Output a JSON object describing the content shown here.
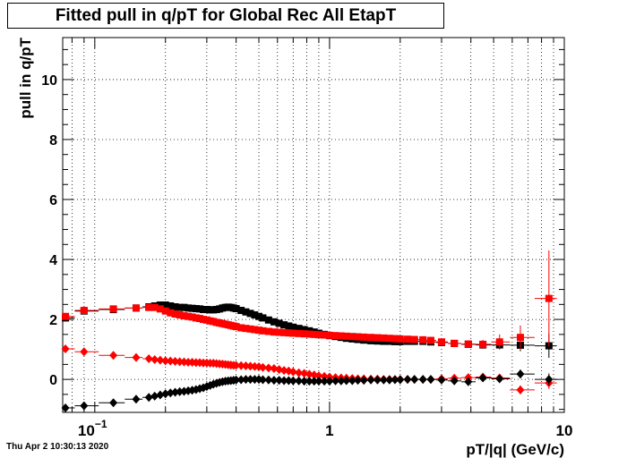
{
  "chart_data": {
    "type": "scatter",
    "title": "Fitted pull in q/pT for Global Rec All EtapT",
    "xlabel": "pT/|q| (GeV/c)",
    "ylabel": "pull in q/pT",
    "x_scale": "log",
    "xlim": [
      0.073,
      10
    ],
    "ylim": [
      -1.1,
      11.4
    ],
    "grid": true,
    "x_ticks": [
      {
        "value": 0.1,
        "base": "10",
        "exp": "−1"
      },
      {
        "value": 1,
        "base": "1",
        "exp": ""
      },
      {
        "value": 10,
        "base": "10",
        "exp": ""
      }
    ],
    "y_ticks": [
      0,
      2,
      4,
      6,
      8,
      10
    ],
    "series": [
      {
        "marker": "square",
        "color": "#000000",
        "x": [
          0.075,
          0.09,
          0.12,
          0.15,
          0.17,
          0.18,
          0.19,
          0.2,
          0.21,
          0.22,
          0.23,
          0.24,
          0.25,
          0.26,
          0.27,
          0.28,
          0.29,
          0.3,
          0.31,
          0.32,
          0.33,
          0.34,
          0.35,
          0.36,
          0.37,
          0.38,
          0.39,
          0.4,
          0.42,
          0.44,
          0.46,
          0.48,
          0.5,
          0.52,
          0.55,
          0.58,
          0.61,
          0.64,
          0.67,
          0.7,
          0.74,
          0.78,
          0.82,
          0.86,
          0.9,
          0.95,
          1.0,
          1.06,
          1.12,
          1.18,
          1.25,
          1.32,
          1.4,
          1.5,
          1.6,
          1.7,
          1.8,
          1.9,
          2.0,
          2.15,
          2.3,
          2.5,
          2.7,
          3.0,
          3.4,
          3.9,
          4.5,
          5.3,
          6.5,
          8.6
        ],
        "y": [
          2.05,
          2.28,
          2.33,
          2.38,
          2.42,
          2.45,
          2.48,
          2.48,
          2.45,
          2.42,
          2.4,
          2.4,
          2.38,
          2.37,
          2.36,
          2.35,
          2.33,
          2.33,
          2.32,
          2.32,
          2.33,
          2.35,
          2.38,
          2.4,
          2.41,
          2.4,
          2.38,
          2.36,
          2.3,
          2.25,
          2.2,
          2.15,
          2.1,
          2.05,
          1.98,
          1.92,
          1.87,
          1.82,
          1.78,
          1.74,
          1.7,
          1.66,
          1.62,
          1.58,
          1.54,
          1.5,
          1.46,
          1.43,
          1.4,
          1.37,
          1.35,
          1.33,
          1.31,
          1.29,
          1.28,
          1.27,
          1.27,
          1.26,
          1.26,
          1.27,
          1.27,
          1.27,
          1.25,
          1.23,
          1.2,
          1.17,
          1.15,
          1.15,
          1.14,
          1.12
        ],
        "err": [
          0.05,
          0.04,
          0.04,
          0.04,
          0.04,
          0.04,
          0.04,
          0.04,
          0.04,
          0.04,
          0.04,
          0.04,
          0.04,
          0.04,
          0.04,
          0.04,
          0.04,
          0.04,
          0.04,
          0.04,
          0.04,
          0.04,
          0.04,
          0.04,
          0.04,
          0.04,
          0.04,
          0.04,
          0.04,
          0.04,
          0.04,
          0.04,
          0.04,
          0.04,
          0.04,
          0.04,
          0.04,
          0.04,
          0.04,
          0.04,
          0.04,
          0.04,
          0.04,
          0.04,
          0.04,
          0.04,
          0.04,
          0.04,
          0.04,
          0.04,
          0.04,
          0.04,
          0.04,
          0.04,
          0.04,
          0.04,
          0.04,
          0.04,
          0.04,
          0.04,
          0.05,
          0.05,
          0.06,
          0.07,
          0.08,
          0.1,
          0.12,
          0.15,
          0.2,
          0.4
        ]
      },
      {
        "marker": "square",
        "color": "#ff0000",
        "x": [
          0.075,
          0.09,
          0.12,
          0.15,
          0.17,
          0.18,
          0.19,
          0.2,
          0.21,
          0.22,
          0.23,
          0.24,
          0.25,
          0.26,
          0.27,
          0.28,
          0.29,
          0.3,
          0.31,
          0.32,
          0.33,
          0.34,
          0.35,
          0.36,
          0.37,
          0.38,
          0.39,
          0.4,
          0.42,
          0.44,
          0.46,
          0.48,
          0.5,
          0.52,
          0.55,
          0.58,
          0.61,
          0.64,
          0.67,
          0.7,
          0.74,
          0.78,
          0.82,
          0.86,
          0.9,
          0.95,
          1.0,
          1.06,
          1.12,
          1.18,
          1.25,
          1.32,
          1.4,
          1.5,
          1.6,
          1.7,
          1.8,
          1.9,
          2.0,
          2.15,
          2.3,
          2.5,
          2.7,
          3.0,
          3.4,
          3.9,
          4.5,
          5.3,
          6.5,
          8.6
        ],
        "y": [
          2.1,
          2.3,
          2.35,
          2.38,
          2.4,
          2.4,
          2.35,
          2.28,
          2.22,
          2.18,
          2.15,
          2.12,
          2.1,
          2.08,
          2.05,
          2.03,
          2.0,
          1.98,
          1.95,
          1.93,
          1.9,
          1.88,
          1.86,
          1.84,
          1.82,
          1.8,
          1.78,
          1.76,
          1.72,
          1.7,
          1.68,
          1.66,
          1.64,
          1.62,
          1.6,
          1.58,
          1.57,
          1.56,
          1.55,
          1.54,
          1.53,
          1.52,
          1.51,
          1.5,
          1.49,
          1.48,
          1.47,
          1.46,
          1.45,
          1.44,
          1.43,
          1.42,
          1.41,
          1.4,
          1.39,
          1.38,
          1.37,
          1.36,
          1.35,
          1.34,
          1.33,
          1.32,
          1.3,
          1.25,
          1.2,
          1.18,
          1.17,
          1.25,
          1.4,
          2.7
        ],
        "err": [
          0.05,
          0.04,
          0.04,
          0.04,
          0.04,
          0.04,
          0.04,
          0.04,
          0.04,
          0.04,
          0.04,
          0.04,
          0.04,
          0.04,
          0.04,
          0.04,
          0.04,
          0.04,
          0.04,
          0.04,
          0.04,
          0.04,
          0.04,
          0.04,
          0.04,
          0.04,
          0.04,
          0.04,
          0.04,
          0.04,
          0.04,
          0.04,
          0.04,
          0.04,
          0.04,
          0.04,
          0.04,
          0.04,
          0.04,
          0.04,
          0.04,
          0.04,
          0.04,
          0.04,
          0.04,
          0.04,
          0.04,
          0.04,
          0.04,
          0.04,
          0.04,
          0.04,
          0.04,
          0.04,
          0.04,
          0.04,
          0.04,
          0.04,
          0.04,
          0.04,
          0.05,
          0.05,
          0.06,
          0.07,
          0.09,
          0.12,
          0.15,
          0.25,
          0.4,
          1.6
        ]
      },
      {
        "marker": "diamond",
        "color": "#ff0000",
        "x": [
          0.075,
          0.09,
          0.12,
          0.15,
          0.17,
          0.18,
          0.19,
          0.2,
          0.21,
          0.22,
          0.23,
          0.24,
          0.25,
          0.26,
          0.27,
          0.28,
          0.29,
          0.3,
          0.31,
          0.32,
          0.33,
          0.34,
          0.35,
          0.36,
          0.37,
          0.38,
          0.39,
          0.4,
          0.42,
          0.44,
          0.46,
          0.48,
          0.5,
          0.52,
          0.55,
          0.58,
          0.61,
          0.64,
          0.67,
          0.7,
          0.74,
          0.78,
          0.82,
          0.86,
          0.9,
          0.95,
          1.0,
          1.06,
          1.12,
          1.18,
          1.25,
          1.32,
          1.4,
          1.5,
          1.6,
          1.7,
          1.8,
          1.9,
          2.0,
          2.15,
          2.3,
          2.5,
          2.7,
          3.0,
          3.4,
          3.9,
          4.5,
          5.3,
          6.5,
          8.6
        ],
        "y": [
          1.02,
          0.92,
          0.8,
          0.73,
          0.69,
          0.66,
          0.64,
          0.62,
          0.61,
          0.6,
          0.59,
          0.58,
          0.57,
          0.57,
          0.56,
          0.56,
          0.55,
          0.55,
          0.54,
          0.54,
          0.53,
          0.52,
          0.51,
          0.5,
          0.49,
          0.48,
          0.47,
          0.47,
          0.46,
          0.45,
          0.44,
          0.43,
          0.42,
          0.4,
          0.38,
          0.36,
          0.33,
          0.3,
          0.28,
          0.25,
          0.22,
          0.2,
          0.17,
          0.15,
          0.12,
          0.1,
          0.08,
          0.06,
          0.05,
          0.04,
          0.03,
          0.02,
          0.02,
          0.01,
          0.01,
          0.0,
          0.0,
          0.0,
          0.0,
          0.0,
          0.0,
          0.0,
          0.0,
          0.02,
          0.04,
          0.06,
          0.08,
          0.05,
          -0.35,
          -0.12
        ],
        "err": [
          0.05,
          0.04,
          0.04,
          0.04,
          0.04,
          0.04,
          0.04,
          0.04,
          0.04,
          0.04,
          0.04,
          0.04,
          0.04,
          0.04,
          0.04,
          0.04,
          0.04,
          0.04,
          0.04,
          0.04,
          0.04,
          0.04,
          0.04,
          0.04,
          0.04,
          0.04,
          0.04,
          0.04,
          0.04,
          0.04,
          0.04,
          0.04,
          0.04,
          0.04,
          0.04,
          0.04,
          0.04,
          0.04,
          0.04,
          0.04,
          0.04,
          0.04,
          0.04,
          0.04,
          0.04,
          0.04,
          0.04,
          0.04,
          0.04,
          0.04,
          0.04,
          0.04,
          0.04,
          0.04,
          0.04,
          0.04,
          0.04,
          0.04,
          0.04,
          0.04,
          0.05,
          0.05,
          0.05,
          0.06,
          0.07,
          0.08,
          0.1,
          0.12,
          0.15,
          0.2
        ]
      },
      {
        "marker": "diamond",
        "color": "#000000",
        "x": [
          0.075,
          0.09,
          0.12,
          0.15,
          0.17,
          0.18,
          0.19,
          0.2,
          0.21,
          0.22,
          0.23,
          0.24,
          0.25,
          0.26,
          0.27,
          0.28,
          0.29,
          0.3,
          0.31,
          0.32,
          0.33,
          0.34,
          0.35,
          0.36,
          0.37,
          0.38,
          0.39,
          0.4,
          0.42,
          0.44,
          0.46,
          0.48,
          0.5,
          0.52,
          0.55,
          0.58,
          0.61,
          0.64,
          0.67,
          0.7,
          0.74,
          0.78,
          0.82,
          0.86,
          0.9,
          0.95,
          1.0,
          1.06,
          1.12,
          1.18,
          1.25,
          1.32,
          1.4,
          1.5,
          1.6,
          1.7,
          1.8,
          1.9,
          2.0,
          2.15,
          2.3,
          2.5,
          2.7,
          3.0,
          3.4,
          3.9,
          4.5,
          5.3,
          6.5,
          8.6
        ],
        "y": [
          -0.95,
          -0.88,
          -0.78,
          -0.66,
          -0.6,
          -0.56,
          -0.52,
          -0.48,
          -0.45,
          -0.43,
          -0.41,
          -0.4,
          -0.38,
          -0.36,
          -0.34,
          -0.31,
          -0.28,
          -0.24,
          -0.2,
          -0.16,
          -0.13,
          -0.1,
          -0.08,
          -0.06,
          -0.05,
          -0.04,
          -0.03,
          -0.02,
          -0.01,
          0.0,
          0.0,
          0.0,
          0.0,
          -0.01,
          -0.02,
          -0.03,
          -0.03,
          -0.04,
          -0.04,
          -0.05,
          -0.05,
          -0.06,
          -0.06,
          -0.06,
          -0.06,
          -0.06,
          -0.06,
          -0.05,
          -0.05,
          -0.04,
          -0.04,
          -0.03,
          -0.03,
          -0.02,
          -0.02,
          -0.02,
          -0.02,
          -0.01,
          -0.01,
          0.0,
          0.0,
          0.0,
          0.0,
          -0.02,
          -0.05,
          -0.08,
          0.05,
          0.02,
          0.18,
          0.0
        ],
        "err": [
          0.05,
          0.04,
          0.04,
          0.04,
          0.04,
          0.04,
          0.04,
          0.04,
          0.04,
          0.04,
          0.04,
          0.04,
          0.04,
          0.04,
          0.04,
          0.04,
          0.04,
          0.04,
          0.04,
          0.04,
          0.04,
          0.04,
          0.04,
          0.04,
          0.04,
          0.04,
          0.04,
          0.04,
          0.04,
          0.04,
          0.04,
          0.04,
          0.04,
          0.04,
          0.04,
          0.04,
          0.04,
          0.04,
          0.04,
          0.04,
          0.04,
          0.04,
          0.04,
          0.04,
          0.04,
          0.04,
          0.04,
          0.04,
          0.04,
          0.04,
          0.04,
          0.04,
          0.04,
          0.04,
          0.04,
          0.04,
          0.04,
          0.04,
          0.04,
          0.04,
          0.05,
          0.05,
          0.05,
          0.06,
          0.07,
          0.08,
          0.1,
          0.12,
          0.15,
          0.2
        ]
      }
    ]
  },
  "footer": "Thu Apr  2 10:30:13 2020"
}
